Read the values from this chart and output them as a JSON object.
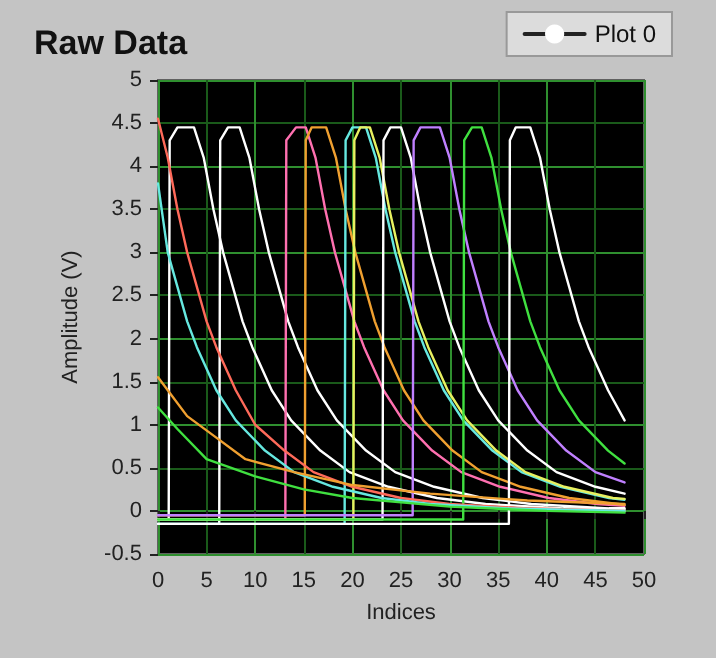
{
  "chart_data": {
    "type": "line",
    "title": "Raw Data",
    "xlabel": "Indices",
    "ylabel": "Amplitude (V)",
    "xlim": [
      0,
      50
    ],
    "xticks": [
      0,
      5,
      10,
      15,
      20,
      25,
      30,
      35,
      40,
      45,
      50
    ],
    "ylim": [
      -0.5,
      5
    ],
    "yticks": [
      -0.5,
      0,
      0.5,
      1,
      1.5,
      2,
      2.5,
      3,
      3.5,
      4,
      4.5,
      5
    ],
    "grid": true,
    "legend": "top right",
    "marker": "none",
    "line_style": "solid",
    "series": [
      {
        "name": "Plot 0",
        "color": "#ffffff",
        "x": [
          0,
          1.1,
          1.2,
          2,
          3.7,
          4.7,
          5.7,
          6.7,
          7.7,
          8.7,
          9.7,
          11.7,
          13.7,
          16.7,
          19.7,
          23.7,
          28.7,
          33.7,
          41.7,
          48
        ],
        "values": [
          -0.1,
          -0.1,
          4.3,
          4.45,
          4.45,
          4.1,
          3.5,
          3.0,
          2.6,
          2.2,
          1.9,
          1.4,
          1.05,
          0.7,
          0.45,
          0.28,
          0.15,
          0.08,
          0.03,
          0.02
        ]
      },
      {
        "color": "#ffffff",
        "x": [
          0,
          6.3,
          6.4,
          7.2,
          8.4,
          9.4,
          10.4,
          11.4,
          12.4,
          13.4,
          14.4,
          16.4,
          18.4,
          21.4,
          24.4,
          28.4,
          33.4,
          38.4,
          46.4,
          48
        ],
        "values": [
          -0.15,
          -0.15,
          4.3,
          4.45,
          4.45,
          4.1,
          3.5,
          3.0,
          2.6,
          2.2,
          1.9,
          1.4,
          1.05,
          0.7,
          0.45,
          0.28,
          0.15,
          0.08,
          0.03,
          0.03
        ]
      },
      {
        "color": "#ff70b0",
        "x": [
          0,
          13.1,
          13.2,
          14.2,
          15.2,
          16.2,
          17.2,
          18.2,
          19.2,
          20.2,
          21.2,
          23.2,
          25.2,
          28.2,
          31.2,
          35.2,
          40.2,
          45.2,
          48
        ],
        "values": [
          -0.1,
          -0.1,
          4.3,
          4.45,
          4.45,
          4.1,
          3.5,
          3.0,
          2.6,
          2.2,
          1.9,
          1.4,
          1.05,
          0.7,
          0.45,
          0.28,
          0.15,
          0.08,
          0.06
        ]
      },
      {
        "color": "#f0a030",
        "x": [
          0,
          15.1,
          15.2,
          15.8,
          17.3,
          18.3,
          19.3,
          20.3,
          21.3,
          22.3,
          23.3,
          25.3,
          27.3,
          30.3,
          33.3,
          37.3,
          42.3,
          47.3,
          48
        ],
        "values": [
          -0.05,
          -0.05,
          4.3,
          4.45,
          4.45,
          4.1,
          3.5,
          3.0,
          2.6,
          2.2,
          1.9,
          1.4,
          1.05,
          0.7,
          0.45,
          0.28,
          0.15,
          0.08,
          0.07
        ]
      },
      {
        "color": "#66e8e0",
        "x": [
          0,
          19.2,
          19.3,
          20,
          21.4,
          22.4,
          23.4,
          24.4,
          25.4,
          26.4,
          27.4,
          29.4,
          31.4,
          34.4,
          37.4,
          41.4,
          46.4,
          48
        ],
        "values": [
          -0.15,
          -0.15,
          4.3,
          4.45,
          4.45,
          4.1,
          3.5,
          3.0,
          2.6,
          2.2,
          1.9,
          1.4,
          1.05,
          0.7,
          0.45,
          0.28,
          0.15,
          0.13
        ]
      },
      {
        "color": "#e8f060",
        "x": [
          0,
          20.1,
          20.2,
          20.8,
          21.8,
          22.8,
          23.8,
          24.8,
          25.8,
          26.8,
          27.8,
          29.8,
          31.8,
          34.8,
          37.8,
          41.8,
          46.8,
          48
        ],
        "values": [
          -0.1,
          -0.1,
          4.3,
          4.45,
          4.45,
          4.1,
          3.5,
          3.0,
          2.6,
          2.2,
          1.9,
          1.4,
          1.05,
          0.7,
          0.45,
          0.28,
          0.15,
          0.14
        ]
      },
      {
        "color": "#ffffff",
        "x": [
          0,
          23.1,
          23.2,
          23.9,
          25,
          26,
          27,
          28,
          29,
          30,
          31,
          33,
          35,
          38,
          41,
          45,
          48
        ],
        "values": [
          -0.1,
          -0.1,
          4.3,
          4.45,
          4.45,
          4.1,
          3.5,
          3.0,
          2.6,
          2.2,
          1.9,
          1.4,
          1.05,
          0.7,
          0.45,
          0.28,
          0.2
        ]
      },
      {
        "color": "#c080ff",
        "x": [
          0,
          26.2,
          26.3,
          27,
          29,
          30,
          31,
          32,
          33,
          34,
          35,
          37,
          39,
          42,
          45,
          48
        ],
        "values": [
          -0.05,
          -0.05,
          4.3,
          4.45,
          4.45,
          4.1,
          3.5,
          3.0,
          2.6,
          2.2,
          1.9,
          1.4,
          1.05,
          0.7,
          0.45,
          0.33
        ]
      },
      {
        "color": "#40e040",
        "x": [
          0,
          31.4,
          31.5,
          32.3,
          33.3,
          34.3,
          35.3,
          36.3,
          37.3,
          38.3,
          39.3,
          41.3,
          43.3,
          46.3,
          48
        ],
        "values": [
          -0.1,
          -0.1,
          4.3,
          4.45,
          4.45,
          4.1,
          3.5,
          3.0,
          2.6,
          2.2,
          1.9,
          1.4,
          1.05,
          0.7,
          0.55
        ]
      },
      {
        "color": "#ffffff",
        "x": [
          0,
          36.1,
          36.2,
          36.8,
          38.3,
          39.3,
          40.3,
          41.3,
          42.3,
          43.3,
          44.3,
          46.3,
          48
        ],
        "values": [
          -0.15,
          -0.15,
          4.3,
          4.45,
          4.45,
          4.1,
          3.5,
          3.0,
          2.6,
          2.2,
          1.9,
          1.4,
          1.05
        ]
      },
      {
        "color": "#ff6a5a",
        "x": [
          0,
          1,
          2,
          3,
          4,
          5,
          6,
          8,
          10,
          13,
          16,
          20,
          25,
          30,
          38,
          48
        ],
        "values": [
          4.55,
          4.1,
          3.5,
          3.0,
          2.6,
          2.2,
          1.9,
          1.4,
          1.0,
          0.7,
          0.45,
          0.28,
          0.15,
          0.08,
          0.03,
          0.0
        ]
      },
      {
        "color": "#66e8e0",
        "x": [
          0,
          1,
          2,
          3,
          4,
          6,
          8,
          11,
          14,
          18,
          23,
          28,
          36,
          48
        ],
        "values": [
          3.8,
          3.0,
          2.6,
          2.2,
          1.9,
          1.4,
          1.05,
          0.7,
          0.45,
          0.28,
          0.15,
          0.08,
          0.03,
          0.0
        ]
      },
      {
        "color": "#f0a030",
        "x": [
          0,
          3,
          6,
          9,
          14,
          20,
          28,
          38,
          48
        ],
        "values": [
          1.55,
          1.1,
          0.85,
          0.6,
          0.45,
          0.3,
          0.2,
          0.12,
          0.08
        ]
      },
      {
        "color": "#40e040",
        "x": [
          0,
          2,
          5,
          10,
          15,
          20,
          30,
          40,
          48
        ],
        "values": [
          1.2,
          0.95,
          0.6,
          0.4,
          0.25,
          0.15,
          0.05,
          0.0,
          -0.02
        ]
      }
    ]
  }
}
